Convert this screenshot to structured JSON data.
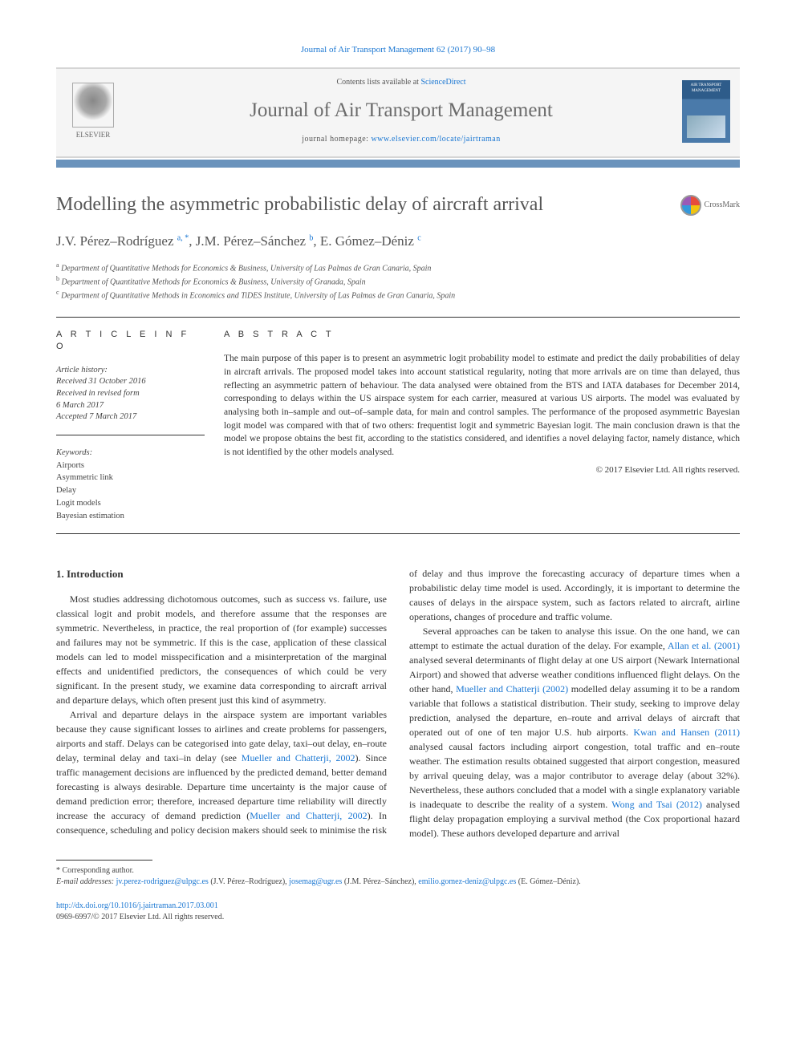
{
  "journal": {
    "citation_line_pre": "Journal of Air Transport Management 62 (2017) 90–98",
    "contents_pre": "Contents lists available at ",
    "contents_link": "ScienceDirect",
    "title": "Journal of Air Transport Management",
    "homepage_pre": "journal homepage: ",
    "homepage_url": "www.elsevier.com/locate/jairtraman",
    "publisher_name": "ELSEVIER",
    "cover_label": "AIR TRANSPORT MANAGEMENT"
  },
  "crossmark": {
    "label": "CrossMark"
  },
  "paper": {
    "title": "Modelling the asymmetric probabilistic delay of aircraft arrival",
    "authors_html": "J.V. Pérez–Rodríguez <sup>a, *</sup>, J.M. Pérez–Sánchez <sup>b</sup>, E. Gómez–Déniz <sup>c</sup>",
    "affiliations": {
      "a": "Department of Quantitative Methods for Economics & Business, University of Las Palmas de Gran Canaria, Spain",
      "b": "Department of Quantitative Methods for Economics & Business, University of Granada, Spain",
      "c": "Department of Quantitative Methods in Economics and TiDES Institute, University of Las Palmas de Gran Canaria, Spain"
    }
  },
  "article_info": {
    "label": "A R T I C L E  I N F O",
    "history_head": "Article history:",
    "received": "Received 31 October 2016",
    "revised": "Received in revised form",
    "revised_date": "6 March 2017",
    "accepted": "Accepted 7 March 2017",
    "keywords_head": "Keywords:",
    "keywords": [
      "Airports",
      "Asymmetric link",
      "Delay",
      "Logit models",
      "Bayesian estimation"
    ]
  },
  "abstract": {
    "label": "A B S T R A C T",
    "text": "The main purpose of this paper is to present an asymmetric logit probability model to estimate and predict the daily probabilities of delay in aircraft arrivals. The proposed model takes into account statistical regularity, noting that more arrivals are on time than delayed, thus reflecting an asymmetric pattern of behaviour. The data analysed were obtained from the BTS and IATA databases for December 2014, corresponding to delays within the US airspace system for each carrier, measured at various US airports. The model was evaluated by analysing both in–sample and out–of–sample data, for main and control samples. The performance of the proposed asymmetric Bayesian logit model was compared with that of two others: frequentist logit and symmetric Bayesian logit. The main conclusion drawn is that the model we propose obtains the best fit, according to the statistics considered, and identifies a novel delaying factor, namely distance, which is not identified by the other models analysed.",
    "copyright": "© 2017 Elsevier Ltd. All rights reserved."
  },
  "body": {
    "section_title": "1. Introduction",
    "p1": "Most studies addressing dichotomous outcomes, such as success vs. failure, use classical logit and probit models, and therefore assume that the responses are symmetric. Nevertheless, in practice, the real proportion of (for example) successes and failures may not be symmetric. If this is the case, application of these classical models can led to model misspecification and a misinterpretation of the marginal effects and unidentified predictors, the consequences of which could be very significant. In the present study, we examine data corresponding to aircraft arrival and departure delays, which often present just this kind of asymmetry.",
    "p2_a": "Arrival and departure delays in the airspace system are important variables because they cause significant losses to airlines and create problems for passengers, airports and staff. Delays can be categorised into gate delay, taxi–out delay, en–route delay, terminal delay and taxi–in delay (see ",
    "p2_cite1": "Mueller and Chatterji, 2002",
    "p2_b": "). Since traffic management decisions are influenced by the predicted demand, better demand forecasting is always desirable. Departure time uncertainty is the major cause of demand prediction error; therefore, increased departure time reliability will directly increase the accuracy of demand prediction (",
    "p2_cite2": "Mueller and Chatterji, 2002",
    "p2_c": "). In consequence, scheduling and policy decision makers should seek to minimise the risk of delay and thus improve the forecasting accuracy of departure times when a probabilistic delay time model is used. Accordingly, it is important to determine the causes of delays in the airspace system, such as factors related to aircraft, airline operations, changes of procedure and traffic volume.",
    "p3_a": "Several approaches can be taken to analyse this issue. On the one hand, we can attempt to estimate the actual duration of the delay. For example, ",
    "p3_cite1": "Allan et al. (2001)",
    "p3_b": " analysed several determinants of flight delay at one US airport (Newark International Airport) and showed that adverse weather conditions influenced flight delays. On the other hand, ",
    "p3_cite2": "Mueller and Chatterji (2002)",
    "p3_c": " modelled delay assuming it to be a random variable that follows a statistical distribution. Their study, seeking to improve delay prediction, analysed the departure, en–route and arrival delays of aircraft that operated out of one of ten major U.S. hub airports. ",
    "p3_cite3": "Kwan and Hansen (2011)",
    "p3_d": " analysed causal factors including airport congestion, total traffic and en–route weather. The estimation results obtained suggested that airport congestion, measured by arrival queuing delay, was a major contributor to average delay (about 32%). Nevertheless, these authors concluded that a model with a single explanatory variable is inadequate to describe the reality of a system. ",
    "p3_cite4": "Wong and Tsai (2012)",
    "p3_e": " analysed flight delay propagation employing a survival method (the Cox proportional hazard model). These authors developed departure and arrival"
  },
  "footnotes": {
    "corresponding": "* Corresponding author.",
    "email_label": "E-mail addresses:",
    "emails": [
      {
        "addr": "jv.perez-rodriguez@ulpgc.es",
        "who": "(J.V. Pérez–Rodríguez),"
      },
      {
        "addr": "josemag@ugr.es",
        "who": "(J.M. Pérez–Sánchez),"
      },
      {
        "addr": "emilio.gomez-deniz@ulpgc.es",
        "who": "(E. Gómez–Déniz)."
      }
    ],
    "doi": "http://dx.doi.org/10.1016/j.jairtraman.2017.03.001",
    "issn_line": "0969-6997/© 2017 Elsevier Ltd. All rights reserved."
  },
  "colors": {
    "link": "#1976d2",
    "accent_bar": "#6a93bc",
    "title_grey": "#555555",
    "border": "#333333"
  }
}
